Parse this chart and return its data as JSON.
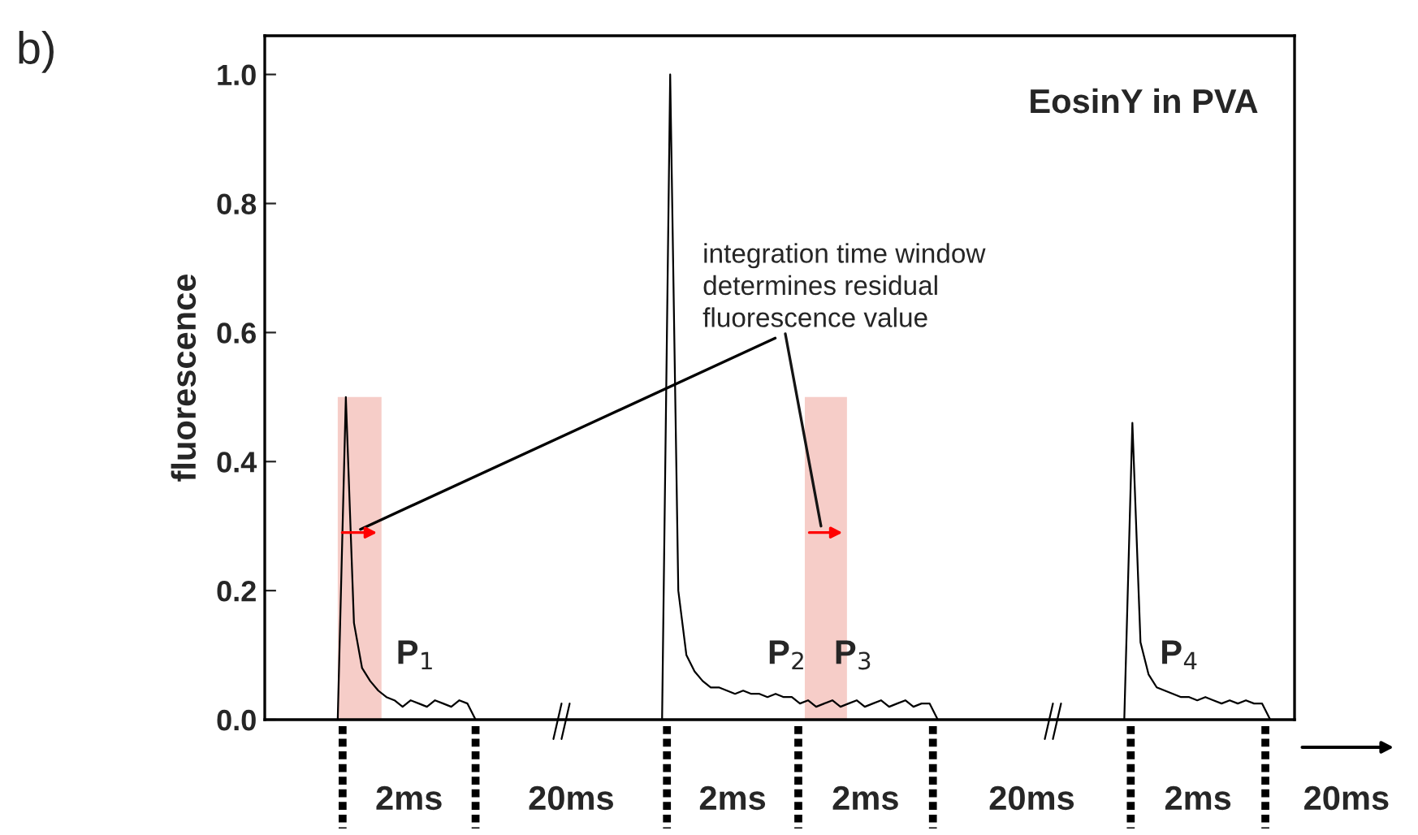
{
  "chart_data": {
    "type": "line",
    "title": "EosinY in PVA",
    "ylabel": "fluorescence",
    "categories": [
      null,
      null,
      null,
      null,
      null,
      null,
      null,
      null,
      null,
      null,
      null,
      null,
      null,
      null,
      null,
      null,
      null,
      null,
      null,
      null,
      null,
      null,
      null,
      null,
      null,
      null,
      null,
      null,
      null,
      null,
      null,
      null,
      null,
      null,
      null,
      null,
      null,
      null,
      null,
      null,
      null,
      null,
      null,
      null,
      null,
      null,
      null,
      null,
      null,
      null,
      null,
      null,
      null,
      null,
      null,
      null,
      null,
      null,
      null,
      null,
      null,
      null,
      null,
      null,
      null,
      null,
      null,
      null,
      null,
      null,
      null,
      null,
      null,
      null,
      null,
      null,
      null,
      null,
      null,
      null,
      null,
      null,
      null,
      null,
      null,
      null,
      null,
      null,
      null,
      null,
      null,
      null,
      null,
      null,
      null,
      null,
      null,
      null,
      null,
      null,
      null,
      null,
      null,
      null,
      null,
      null,
      null,
      null,
      null,
      null,
      null,
      null,
      null,
      null,
      null,
      null,
      null,
      null,
      null,
      null,
      null,
      null,
      null,
      null,
      null,
      null,
      null,
      null
    ],
    "series": [
      {
        "color": "#000000",
        "values": [
          0,
          0,
          0,
          0,
          0,
          0,
          0,
          0,
          0,
          0,
          0.5,
          0.15,
          0.08,
          0.06,
          0.045,
          0.035,
          0.03,
          0.02,
          0.03,
          0.025,
          0.02,
          0.03,
          0.025,
          0.02,
          0.03,
          0.025,
          0,
          0,
          0,
          0,
          0,
          0,
          0,
          0,
          0,
          0,
          0,
          0,
          0,
          0,
          0,
          0,
          0,
          0,
          0,
          0,
          0,
          0,
          0,
          0,
          1.0,
          0.2,
          0.1,
          0.075,
          0.06,
          0.05,
          0.05,
          0.045,
          0.04,
          0.045,
          0.04,
          0.04,
          0.035,
          0.04,
          0.035,
          0.035,
          0.025,
          0.03,
          0.02,
          0.025,
          0.03,
          0.02,
          0.025,
          0.03,
          0.02,
          0.025,
          0.03,
          0.02,
          0.025,
          0.03,
          0.02,
          0.025,
          0.025,
          0,
          0,
          0,
          0,
          0,
          0,
          0,
          0,
          0,
          0,
          0,
          0,
          0,
          0,
          0,
          0,
          0,
          0,
          0,
          0,
          0,
          0,
          0,
          0,
          0.46,
          0.12,
          0.07,
          0.05,
          0.045,
          0.04,
          0.035,
          0.035,
          0.03,
          0.035,
          0.03,
          0.025,
          0.03,
          0.025,
          0.03,
          0.025,
          0.025,
          0,
          0,
          0,
          0
        ]
      }
    ],
    "ylim": [
      0,
      1.06
    ],
    "yticks": [
      {
        "value": 0,
        "label": "0.0"
      },
      {
        "value": 0.2,
        "label": "0.2"
      },
      {
        "value": 0.4,
        "label": "0.4"
      },
      {
        "value": 0.6,
        "label": "0.6"
      },
      {
        "value": 0.8,
        "label": "0.8"
      },
      {
        "value": 1.0,
        "label": "1.0"
      }
    ],
    "tick_labels": "y",
    "grid": false,
    "legend": false,
    "marker": "none",
    "line_style": "solid",
    "annotations": [
      "b)",
      "integration time window\ndetermines residual\nfluorescence value",
      "P$_{1}$",
      "P$_{2}$",
      "P$_{3}$",
      "P$_{4}$",
      "2ms",
      "20ms",
      "2ms",
      "2ms",
      "20ms",
      "2ms",
      "20ms"
    ]
  }
}
